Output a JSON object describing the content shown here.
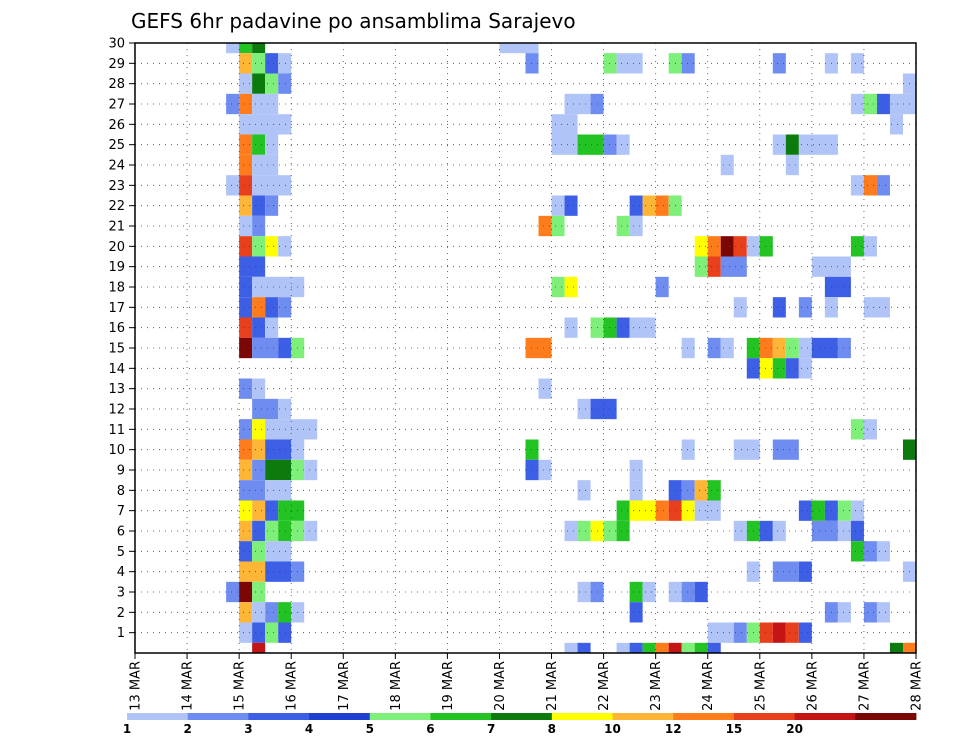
{
  "chart_data": {
    "type": "heatmap",
    "title": "GEFS 6hr padavine po ansamblima Sarajevo",
    "xlabel": "",
    "ylabel": "",
    "x_ticks": [
      "13 MAR",
      "14 MAR",
      "15 MAR",
      "16 MAR",
      "17 MAR",
      "18 MAR",
      "19 MAR",
      "20 MAR",
      "21 MAR",
      "22 MAR",
      "23 MAR",
      "24 MAR",
      "25 MAR",
      "26 MAR",
      "27 MAR",
      "28 MAR"
    ],
    "y_ticks": [
      1,
      2,
      3,
      4,
      5,
      6,
      7,
      8,
      9,
      10,
      11,
      12,
      13,
      14,
      15,
      16,
      17,
      18,
      19,
      20,
      21,
      22,
      23,
      24,
      25,
      26,
      27,
      28,
      29,
      30
    ],
    "x_range_steps": [
      0,
      60
    ],
    "y_range_members": [
      0,
      30
    ],
    "grid": true,
    "colorbar": {
      "placement": "bottom",
      "colors": [
        "#b0c4f8",
        "#6f8cf0",
        "#3c5fe6",
        "#1e3fd0",
        "#7ef07a",
        "#22c322",
        "#0c7a0c",
        "#ffff00",
        "#ffb636",
        "#ff7c1c",
        "#e8401c",
        "#c41414",
        "#7a0606"
      ],
      "labels": [
        "1",
        "2",
        "3",
        "4",
        "5",
        "6",
        "7",
        "8",
        "10",
        "12",
        "15",
        "20"
      ],
      "level_values": [
        1,
        2,
        3,
        4,
        5,
        6,
        7,
        8,
        10,
        12,
        15,
        20
      ]
    },
    "cells_format": "[member, step_start, step_end, level_index] step = 6 h from 13 MAR 00z",
    "cells": [
      [
        30,
        7,
        8,
        0
      ],
      [
        30,
        8,
        9,
        5
      ],
      [
        30,
        9,
        10,
        6
      ],
      [
        30,
        28,
        31,
        0
      ],
      [
        29,
        8,
        9,
        8
      ],
      [
        29,
        9,
        10,
        4
      ],
      [
        29,
        10,
        11,
        2
      ],
      [
        29,
        11,
        12,
        0
      ],
      [
        29,
        30,
        31,
        1
      ],
      [
        29,
        36,
        37,
        4
      ],
      [
        29,
        37,
        39,
        0
      ],
      [
        29,
        41,
        42,
        4
      ],
      [
        29,
        42,
        43,
        1
      ],
      [
        29,
        49,
        50,
        1
      ],
      [
        29,
        53,
        54,
        0
      ],
      [
        29,
        55,
        56,
        0
      ],
      [
        28,
        8,
        9,
        0
      ],
      [
        28,
        9,
        10,
        6
      ],
      [
        28,
        10,
        11,
        4
      ],
      [
        28,
        11,
        12,
        1
      ],
      [
        28,
        59,
        60,
        0
      ],
      [
        27,
        7,
        8,
        1
      ],
      [
        27,
        8,
        9,
        9
      ],
      [
        27,
        9,
        11,
        0
      ],
      [
        27,
        33,
        35,
        0
      ],
      [
        27,
        35,
        36,
        1
      ],
      [
        27,
        55,
        56,
        0
      ],
      [
        27,
        56,
        57,
        4
      ],
      [
        27,
        57,
        58,
        2
      ],
      [
        27,
        58,
        60,
        0
      ],
      [
        26,
        8,
        12,
        0
      ],
      [
        26,
        32,
        34,
        0
      ],
      [
        26,
        58,
        59,
        0
      ],
      [
        25,
        8,
        9,
        9
      ],
      [
        25,
        9,
        10,
        5
      ],
      [
        25,
        10,
        11,
        0
      ],
      [
        25,
        32,
        34,
        0
      ],
      [
        25,
        34,
        36,
        5
      ],
      [
        25,
        36,
        37,
        1
      ],
      [
        25,
        37,
        38,
        0
      ],
      [
        25,
        49,
        50,
        0
      ],
      [
        25,
        50,
        51,
        6
      ],
      [
        25,
        51,
        54,
        0
      ],
      [
        24,
        8,
        9,
        9
      ],
      [
        24,
        9,
        11,
        0
      ],
      [
        24,
        45,
        46,
        0
      ],
      [
        24,
        50,
        51,
        0
      ],
      [
        23,
        7,
        8,
        0
      ],
      [
        23,
        8,
        9,
        10
      ],
      [
        23,
        9,
        12,
        0
      ],
      [
        23,
        55,
        56,
        0
      ],
      [
        23,
        56,
        57,
        9
      ],
      [
        23,
        57,
        58,
        1
      ],
      [
        22,
        8,
        9,
        8
      ],
      [
        22,
        9,
        10,
        2
      ],
      [
        22,
        10,
        11,
        1
      ],
      [
        22,
        32,
        33,
        0
      ],
      [
        22,
        33,
        34,
        2
      ],
      [
        22,
        38,
        39,
        2
      ],
      [
        22,
        39,
        40,
        8
      ],
      [
        22,
        40,
        41,
        9
      ],
      [
        22,
        41,
        42,
        4
      ],
      [
        21,
        8,
        9,
        0
      ],
      [
        21,
        9,
        10,
        1
      ],
      [
        21,
        31,
        32,
        9
      ],
      [
        21,
        32,
        33,
        4
      ],
      [
        21,
        37,
        38,
        4
      ],
      [
        21,
        38,
        39,
        0
      ],
      [
        20,
        8,
        9,
        10
      ],
      [
        20,
        9,
        10,
        4
      ],
      [
        20,
        10,
        11,
        7
      ],
      [
        20,
        11,
        12,
        0
      ],
      [
        20,
        43,
        44,
        7
      ],
      [
        20,
        44,
        45,
        9
      ],
      [
        20,
        45,
        46,
        12
      ],
      [
        20,
        46,
        47,
        10
      ],
      [
        20,
        47,
        48,
        0
      ],
      [
        20,
        48,
        49,
        5
      ],
      [
        20,
        55,
        56,
        5
      ],
      [
        20,
        56,
        57,
        0
      ],
      [
        19,
        8,
        10,
        2
      ],
      [
        19,
        43,
        44,
        4
      ],
      [
        19,
        44,
        45,
        10
      ],
      [
        19,
        45,
        47,
        1
      ],
      [
        19,
        52,
        55,
        0
      ],
      [
        18,
        8,
        9,
        2
      ],
      [
        18,
        9,
        13,
        0
      ],
      [
        18,
        32,
        33,
        4
      ],
      [
        18,
        33,
        34,
        7
      ],
      [
        18,
        40,
        41,
        1
      ],
      [
        18,
        53,
        55,
        2
      ],
      [
        17,
        8,
        9,
        2
      ],
      [
        17,
        9,
        10,
        9
      ],
      [
        17,
        10,
        11,
        2
      ],
      [
        17,
        11,
        12,
        1
      ],
      [
        17,
        46,
        47,
        0
      ],
      [
        17,
        49,
        50,
        2
      ],
      [
        17,
        51,
        52,
        1
      ],
      [
        17,
        53,
        54,
        0
      ],
      [
        17,
        56,
        58,
        0
      ],
      [
        16,
        8,
        9,
        10
      ],
      [
        16,
        9,
        10,
        2
      ],
      [
        16,
        10,
        11,
        0
      ],
      [
        16,
        33,
        34,
        0
      ],
      [
        16,
        35,
        36,
        4
      ],
      [
        16,
        36,
        37,
        5
      ],
      [
        16,
        37,
        38,
        2
      ],
      [
        16,
        38,
        40,
        0
      ],
      [
        15,
        8,
        9,
        12
      ],
      [
        15,
        9,
        11,
        1
      ],
      [
        15,
        11,
        12,
        2
      ],
      [
        15,
        12,
        13,
        4
      ],
      [
        15,
        30,
        32,
        9
      ],
      [
        15,
        42,
        43,
        0
      ],
      [
        15,
        44,
        45,
        1
      ],
      [
        15,
        45,
        46,
        0
      ],
      [
        15,
        47,
        48,
        5
      ],
      [
        15,
        48,
        49,
        9
      ],
      [
        15,
        49,
        50,
        8
      ],
      [
        15,
        50,
        51,
        4
      ],
      [
        15,
        51,
        52,
        0
      ],
      [
        15,
        52,
        54,
        2
      ],
      [
        15,
        54,
        55,
        1
      ],
      [
        14,
        47,
        48,
        2
      ],
      [
        14,
        48,
        49,
        7
      ],
      [
        14,
        49,
        50,
        5
      ],
      [
        14,
        50,
        51,
        2
      ],
      [
        14,
        51,
        52,
        0
      ],
      [
        13,
        8,
        9,
        1
      ],
      [
        13,
        9,
        10,
        0
      ],
      [
        13,
        31,
        32,
        0
      ],
      [
        12,
        9,
        11,
        1
      ],
      [
        12,
        11,
        12,
        0
      ],
      [
        12,
        34,
        35,
        0
      ],
      [
        12,
        35,
        37,
        2
      ],
      [
        11,
        8,
        9,
        1
      ],
      [
        11,
        9,
        10,
        7
      ],
      [
        11,
        10,
        14,
        0
      ],
      [
        11,
        55,
        56,
        4
      ],
      [
        11,
        56,
        57,
        0
      ],
      [
        10,
        8,
        9,
        9
      ],
      [
        10,
        9,
        10,
        8
      ],
      [
        10,
        10,
        12,
        2
      ],
      [
        10,
        12,
        13,
        0
      ],
      [
        10,
        30,
        31,
        5
      ],
      [
        10,
        42,
        43,
        0
      ],
      [
        10,
        46,
        48,
        0
      ],
      [
        10,
        49,
        51,
        1
      ],
      [
        10,
        59,
        60,
        6
      ],
      [
        9,
        8,
        9,
        8
      ],
      [
        9,
        9,
        10,
        1
      ],
      [
        9,
        10,
        12,
        6
      ],
      [
        9,
        12,
        13,
        4
      ],
      [
        9,
        13,
        14,
        0
      ],
      [
        9,
        30,
        31,
        2
      ],
      [
        9,
        31,
        32,
        0
      ],
      [
        9,
        38,
        39,
        0
      ],
      [
        8,
        8,
        10,
        1
      ],
      [
        8,
        10,
        12,
        0
      ],
      [
        8,
        34,
        35,
        0
      ],
      [
        8,
        38,
        39,
        0
      ],
      [
        8,
        41,
        42,
        2
      ],
      [
        8,
        42,
        43,
        1
      ],
      [
        8,
        43,
        44,
        8
      ],
      [
        8,
        44,
        45,
        5
      ],
      [
        7,
        8,
        9,
        7
      ],
      [
        7,
        9,
        10,
        8
      ],
      [
        7,
        10,
        11,
        2
      ],
      [
        7,
        11,
        13,
        5
      ],
      [
        7,
        37,
        38,
        5
      ],
      [
        7,
        38,
        40,
        7
      ],
      [
        7,
        40,
        41,
        9
      ],
      [
        7,
        41,
        42,
        10
      ],
      [
        7,
        42,
        43,
        7
      ],
      [
        7,
        43,
        45,
        0
      ],
      [
        7,
        51,
        52,
        2
      ],
      [
        7,
        52,
        53,
        5
      ],
      [
        7,
        53,
        54,
        2
      ],
      [
        7,
        54,
        55,
        4
      ],
      [
        7,
        55,
        56,
        0
      ],
      [
        6,
        8,
        9,
        8
      ],
      [
        6,
        9,
        10,
        2
      ],
      [
        6,
        10,
        11,
        4
      ],
      [
        6,
        11,
        12,
        5
      ],
      [
        6,
        12,
        13,
        4
      ],
      [
        6,
        13,
        14,
        0
      ],
      [
        6,
        33,
        34,
        0
      ],
      [
        6,
        34,
        35,
        4
      ],
      [
        6,
        35,
        36,
        7
      ],
      [
        6,
        36,
        37,
        4
      ],
      [
        6,
        37,
        38,
        5
      ],
      [
        6,
        46,
        47,
        0
      ],
      [
        6,
        47,
        48,
        5
      ],
      [
        6,
        48,
        49,
        2
      ],
      [
        6,
        49,
        50,
        0
      ],
      [
        6,
        52,
        54,
        1
      ],
      [
        6,
        54,
        55,
        0
      ],
      [
        6,
        55,
        56,
        2
      ],
      [
        5,
        8,
        9,
        2
      ],
      [
        5,
        9,
        10,
        4
      ],
      [
        5,
        10,
        12,
        0
      ],
      [
        5,
        55,
        56,
        5
      ],
      [
        5,
        56,
        57,
        1
      ],
      [
        5,
        57,
        58,
        0
      ],
      [
        4,
        8,
        10,
        8
      ],
      [
        4,
        10,
        12,
        2
      ],
      [
        4,
        12,
        13,
        1
      ],
      [
        4,
        47,
        48,
        0
      ],
      [
        4,
        49,
        51,
        1
      ],
      [
        4,
        51,
        52,
        2
      ],
      [
        4,
        59,
        60,
        0
      ],
      [
        3,
        7,
        8,
        1
      ],
      [
        3,
        8,
        9,
        12
      ],
      [
        3,
        9,
        10,
        4
      ],
      [
        3,
        34,
        35,
        0
      ],
      [
        3,
        35,
        36,
        1
      ],
      [
        3,
        38,
        39,
        5
      ],
      [
        3,
        39,
        40,
        0
      ],
      [
        3,
        41,
        42,
        0
      ],
      [
        3,
        42,
        43,
        1
      ],
      [
        3,
        43,
        44,
        2
      ],
      [
        2,
        8,
        9,
        8
      ],
      [
        2,
        9,
        10,
        0
      ],
      [
        2,
        10,
        11,
        1
      ],
      [
        2,
        11,
        12,
        5
      ],
      [
        2,
        12,
        13,
        0
      ],
      [
        2,
        38,
        39,
        2
      ],
      [
        2,
        53,
        54,
        1
      ],
      [
        2,
        54,
        55,
        0
      ],
      [
        2,
        56,
        57,
        1
      ],
      [
        2,
        57,
        58,
        0
      ],
      [
        1,
        8,
        9,
        0
      ],
      [
        1,
        9,
        10,
        2
      ],
      [
        1,
        10,
        11,
        4
      ],
      [
        1,
        11,
        12,
        2
      ],
      [
        1,
        44,
        46,
        0
      ],
      [
        1,
        46,
        47,
        1
      ],
      [
        1,
        47,
        48,
        4
      ],
      [
        1,
        48,
        49,
        10
      ],
      [
        1,
        49,
        50,
        11
      ],
      [
        1,
        50,
        51,
        10
      ],
      [
        1,
        51,
        52,
        2
      ],
      [
        0,
        9,
        10,
        11
      ],
      [
        0,
        33,
        34,
        0
      ],
      [
        0,
        34,
        35,
        2
      ],
      [
        0,
        37,
        38,
        0
      ],
      [
        0,
        38,
        39,
        2
      ],
      [
        0,
        39,
        40,
        5
      ],
      [
        0,
        40,
        41,
        9
      ],
      [
        0,
        41,
        42,
        11
      ],
      [
        0,
        42,
        43,
        4
      ],
      [
        0,
        43,
        44,
        5
      ],
      [
        0,
        44,
        45,
        2
      ],
      [
        0,
        58,
        59,
        6
      ],
      [
        0,
        59,
        60,
        9
      ]
    ]
  }
}
